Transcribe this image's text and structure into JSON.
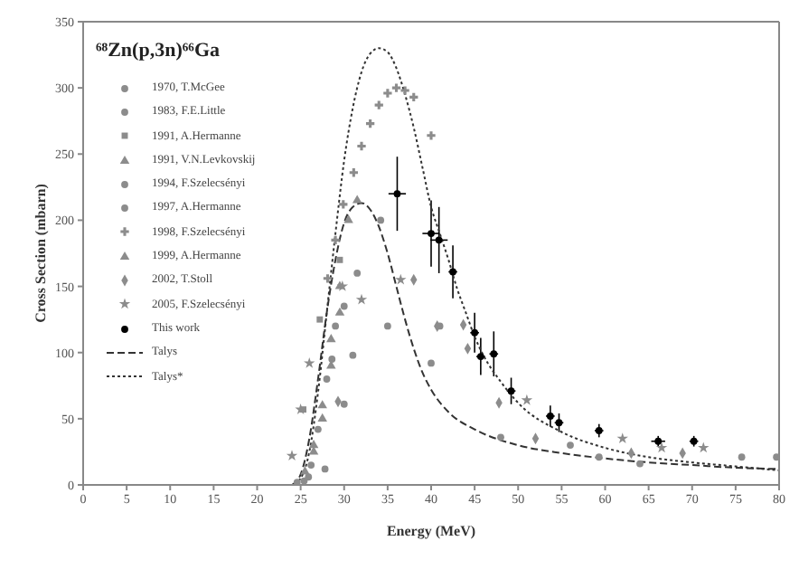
{
  "chart_data": {
    "type": "scatter",
    "title": "⁶⁸Zn(p,3n)⁶⁶Ga",
    "xlabel": "Energy (MeV)",
    "ylabel": "Cross Section (mbarn)",
    "xlim": [
      0,
      80
    ],
    "xticks": [
      0,
      5,
      10,
      15,
      20,
      25,
      30,
      35,
      40,
      45,
      50,
      55,
      60,
      65,
      70,
      75,
      80
    ],
    "ylim": [
      0,
      350
    ],
    "yticks": [
      0,
      50,
      100,
      150,
      200,
      250,
      300,
      350
    ],
    "grid": false,
    "legend": "top left",
    "series": [
      {
        "name": "1970, T.McGee",
        "color": "#8c8c8c",
        "marker": "circle",
        "x": [
          30,
          35,
          40,
          48,
          59.3,
          64,
          75.7,
          79.7
        ],
        "values": [
          61,
          120,
          92,
          36,
          21,
          16,
          21,
          21
        ]
      },
      {
        "name": "1983, F.E.Little",
        "color": "#8c8c8c",
        "marker": "circle",
        "x": [
          25.4,
          27.8,
          31.5,
          34.2,
          41,
          56
        ],
        "values": [
          3,
          12,
          160,
          200,
          120,
          30
        ]
      },
      {
        "name": "1991, A.Hermanne",
        "color": "#8c8c8c",
        "marker": "square",
        "x": [
          25.3,
          27.2,
          29.5
        ],
        "values": [
          57,
          125,
          170
        ]
      },
      {
        "name": "1991, V.N.Levkovskij",
        "color": "#8c8c8c",
        "marker": "triangle",
        "x": [
          26.5,
          27.5,
          28.5,
          29.5,
          30.5,
          31.5
        ],
        "values": [
          30,
          60,
          110,
          150,
          200,
          215
        ]
      },
      {
        "name": "1994, F.Szelecsényi",
        "color": "#8c8c8c",
        "marker": "circle",
        "x": [
          26.2,
          27,
          28,
          29,
          30,
          31
        ],
        "values": [
          15,
          42,
          80,
          120,
          135,
          98
        ]
      },
      {
        "name": "1997, A.Hermanne",
        "color": "#8c8c8c",
        "marker": "circle",
        "x": [
          24.6,
          25.9,
          28.6
        ],
        "values": [
          2,
          6,
          95
        ]
      },
      {
        "name": "1998, F.Szelecsényi",
        "color": "#8c8c8c",
        "marker": "cross",
        "x": [
          28.1,
          29,
          29.9,
          31.1,
          32,
          33,
          34,
          35,
          36,
          37,
          38,
          40
        ],
        "values": [
          156,
          185,
          212,
          236,
          256,
          273,
          287,
          296,
          300,
          298,
          293,
          264
        ]
      },
      {
        "name": "1999, A.Hermanne",
        "color": "#8c8c8c",
        "marker": "triangle",
        "x": [
          25.5,
          26.5,
          27.5,
          28.5,
          29.5
        ],
        "values": [
          10,
          25,
          50,
          90,
          130
        ]
      },
      {
        "name": "2002, T.Stoll",
        "color": "#8c8c8c",
        "marker": "diamond",
        "x": [
          29.3,
          38,
          40.7,
          43.7,
          44.2,
          47.8,
          52,
          63,
          68.9
        ],
        "values": [
          63,
          155,
          120,
          121,
          103,
          62,
          35,
          24,
          24
        ]
      },
      {
        "name": "2005, F.Szelecsényi",
        "color": "#8c8c8c",
        "marker": "star",
        "x": [
          24,
          25,
          26,
          29.8,
          32,
          36.5,
          51,
          62,
          66.5,
          71.3
        ],
        "values": [
          22,
          57,
          92,
          150,
          140,
          155,
          64,
          35,
          28,
          28
        ]
      },
      {
        "name": "This work",
        "color": "#000000",
        "marker": "circle",
        "x": [
          36.1,
          40,
          40.9,
          42.5,
          45,
          45.7,
          47.2,
          49.2,
          53.7,
          54.7,
          59.3,
          66.1,
          70.2
        ],
        "values": [
          220,
          190,
          185,
          161,
          115,
          97,
          99,
          71,
          52,
          47,
          41,
          33,
          33
        ],
        "errors": [
          28,
          25,
          25,
          20,
          15,
          14,
          17,
          10,
          8,
          7,
          5,
          4,
          4
        ],
        "xerrors": [
          1,
          1,
          1,
          0.5,
          0.5,
          0.5,
          0.5,
          0.5,
          0.5,
          0.5,
          0.5,
          0.8,
          0.5
        ]
      },
      {
        "name": "Talys",
        "type": "line",
        "color": "#333333",
        "line_style": "dashed",
        "x": [
          24,
          25,
          26,
          27,
          28,
          29,
          30,
          31,
          32,
          33,
          34,
          35,
          36,
          37,
          38,
          39,
          40,
          42,
          45,
          50,
          55,
          60,
          65,
          70,
          75,
          80
        ],
        "values": [
          0,
          8,
          35,
          80,
          130,
          170,
          198,
          210,
          213,
          208,
          195,
          175,
          150,
          125,
          103,
          85,
          72,
          55,
          42,
          30,
          24,
          20,
          17,
          15,
          13,
          12
        ]
      },
      {
        "name": "Talys*",
        "type": "line",
        "color": "#333333",
        "line_style": "dotted",
        "x": [
          0,
          24,
          25,
          26,
          27,
          28,
          29,
          30,
          31,
          32,
          33,
          34,
          35,
          36,
          37,
          38,
          39,
          40,
          41,
          42,
          43,
          44,
          45,
          46,
          48,
          50,
          55,
          60,
          65,
          70,
          75,
          80
        ],
        "values": [
          0,
          0,
          5,
          25,
          70,
          130,
          190,
          245,
          285,
          312,
          326,
          330,
          327,
          315,
          295,
          270,
          240,
          210,
          190,
          170,
          148,
          130,
          112,
          98,
          78,
          62,
          40,
          28,
          21,
          17,
          14,
          11
        ]
      }
    ]
  }
}
